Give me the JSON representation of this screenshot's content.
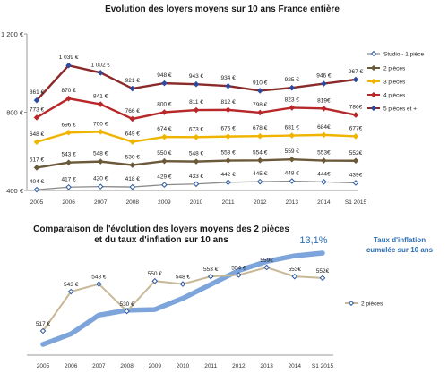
{
  "chart_data": [
    {
      "type": "line",
      "title": "Evolution des loyers moyens sur 10 ans France entière",
      "categories": [
        "2005",
        "2006",
        "2007",
        "2008",
        "2009",
        "2010",
        "2011",
        "2012",
        "2013",
        "2014",
        "S1 2015"
      ],
      "y_ticks": [
        "1 200 €",
        "800 €",
        "400 €"
      ],
      "ylim": [
        400,
        1200
      ],
      "grid": false,
      "legend_position": "right",
      "series": [
        {
          "name": "Studio - 1 pièce",
          "color": "#8a8a8a",
          "marker": "diamond-open",
          "values": [
            404,
            417,
            420,
            418,
            429,
            433,
            442,
            445,
            448,
            444,
            439
          ],
          "labels": [
            "404 €",
            "417 €",
            "420 €",
            "418 €",
            "429 €",
            "433 €",
            "442 €",
            "445 €",
            "448 €",
            "444€",
            "439€"
          ]
        },
        {
          "name": "2 pièces",
          "color": "#6b5a3a",
          "marker": "diamond",
          "values": [
            517,
            543,
            548,
            530,
            550,
            548,
            553,
            554,
            559,
            553,
            552
          ],
          "labels": [
            "517 €",
            "543 €",
            "548 €",
            "530 €",
            "550 €",
            "548 €",
            "553 €",
            "554 €",
            "559 €",
            "553€",
            "552€"
          ]
        },
        {
          "name": "3 pièces",
          "color": "#f0b400",
          "marker": "diamond",
          "values": [
            648,
            696,
            700,
            649,
            674,
            673,
            676,
            678,
            681,
            684,
            677
          ],
          "labels": [
            "648 €",
            "696 €",
            "700 €",
            "649 €",
            "674 €",
            "673 €",
            "676 €",
            "678 €",
            "681 €",
            "684€",
            "677€"
          ]
        },
        {
          "name": "4 pièces",
          "color": "#b8282a",
          "marker": "diamond",
          "values": [
            773,
            870,
            841,
            766,
            800,
            811,
            812,
            798,
            823,
            819,
            786
          ],
          "labels": [
            "773 €",
            "870 €",
            "841 €",
            "766 €",
            "800 €",
            "811 €",
            "812 €",
            "798 €",
            "823 €",
            "819€",
            "786€"
          ]
        },
        {
          "name": "5 pièces et +",
          "color": "#8b2a2a",
          "marker": "diamond-blue",
          "values": [
            861,
            1039,
            1002,
            921,
            948,
            943,
            934,
            910,
            925,
            946,
            967
          ],
          "labels": [
            "861 €",
            "1 039 €",
            "1 002 €",
            "921 €",
            "948 €",
            "943 €",
            "934 €",
            "910 €",
            "925 €",
            "946 €",
            "967 €"
          ]
        }
      ]
    },
    {
      "type": "line",
      "title": "Comparaison de l'évolution des loyers moyens des 2 pièces et du taux d'inflation sur 10 ans",
      "categories": [
        "2005",
        "2006",
        "2007",
        "2008",
        "2009",
        "2010",
        "2011",
        "2012",
        "2013",
        "2014",
        "S1 2015"
      ],
      "legend_position": "right",
      "series": [
        {
          "name": "2 pièces",
          "color": "#c8b896",
          "marker": "diamond-open",
          "values": [
            517,
            543,
            548,
            530,
            550,
            548,
            553,
            554,
            559,
            553,
            552
          ],
          "labels": [
            "517 €",
            "543 €",
            "548 €",
            "530 €",
            "550 €",
            "548 €",
            "553 €",
            "554 €",
            "559€",
            "553€",
            "552€"
          ]
        },
        {
          "color": "#6f9bd8",
          "values": [
            0.0,
            1.5,
            4.2,
            4.9,
            5.0,
            6.6,
            8.6,
            10.6,
            11.9,
            12.7,
            13.1
          ],
          "end_label": "13,1%"
        }
      ],
      "annotation": [
        "Taux d'inflation",
        "cumulée sur 10 ans"
      ]
    }
  ]
}
